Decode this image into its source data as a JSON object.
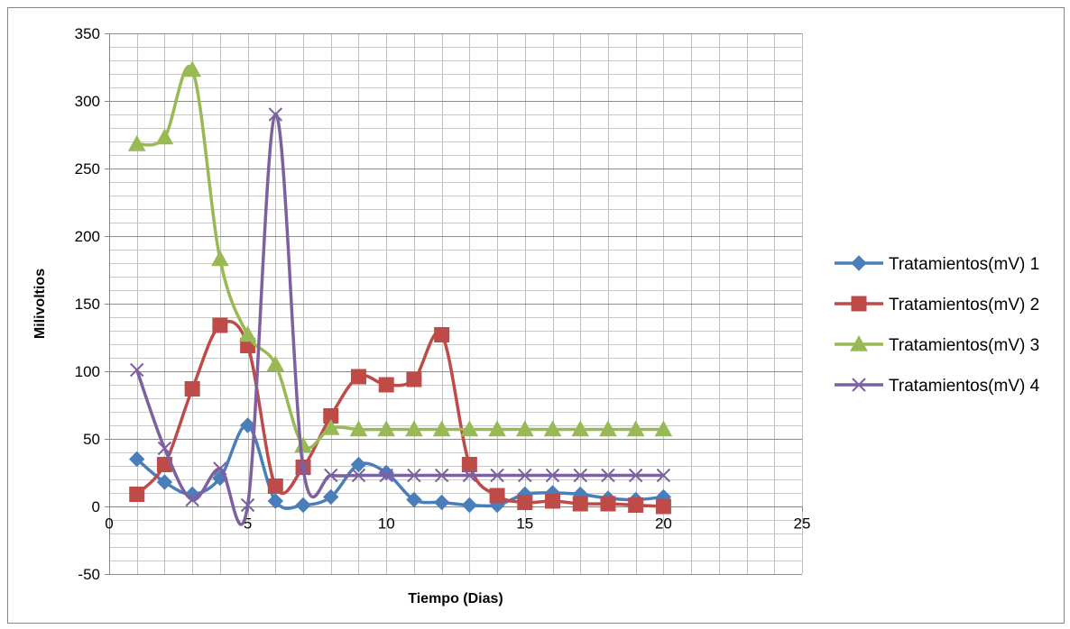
{
  "chart_data": {
    "type": "line",
    "title": "",
    "xlabel": "Tiempo (Dias)",
    "ylabel": "Milivoltios",
    "xlim": [
      0,
      25
    ],
    "ylim": [
      -50,
      350
    ],
    "xticks": [
      0,
      5,
      10,
      15,
      20,
      25
    ],
    "yticks": [
      -50,
      0,
      50,
      100,
      150,
      200,
      250,
      300,
      350
    ],
    "x_minor_step": 1,
    "y_minor_step": 10,
    "grid": true,
    "smooth": true,
    "legend_position": "right",
    "x": [
      1,
      2,
      3,
      4,
      5,
      6,
      7,
      8,
      9,
      10,
      11,
      12,
      13,
      14,
      15,
      16,
      17,
      18,
      19,
      20
    ],
    "series": [
      {
        "name": "Tratamientos(mV) 1",
        "color": "#4a7ebb",
        "marker": "diamond",
        "values": [
          35,
          18,
          9,
          21,
          60,
          4,
          1,
          7,
          31,
          25,
          5,
          3,
          1,
          1,
          9,
          10,
          9,
          6,
          5,
          7
        ]
      },
      {
        "name": "Tratamientos(mV) 2",
        "color": "#be4b48",
        "marker": "square",
        "values": [
          9,
          31,
          87,
          134,
          119,
          15,
          29,
          67,
          96,
          90,
          94,
          127,
          31,
          8,
          3,
          4,
          2,
          2,
          1,
          0
        ]
      },
      {
        "name": "Tratamientos(mV) 3",
        "color": "#98b954",
        "marker": "triangle",
        "values": [
          268,
          273,
          323,
          183,
          127,
          105,
          45,
          58,
          57,
          57,
          57,
          57,
          57,
          57,
          57,
          57,
          57,
          57,
          57,
          57
        ]
      },
      {
        "name": "Tratamientos(mV) 4",
        "color": "#7d60a0",
        "marker": "x",
        "values": [
          101,
          43,
          5,
          28,
          1,
          290,
          28,
          23,
          23,
          23,
          23,
          23,
          23,
          23,
          23,
          23,
          23,
          23,
          23,
          23
        ]
      }
    ]
  }
}
